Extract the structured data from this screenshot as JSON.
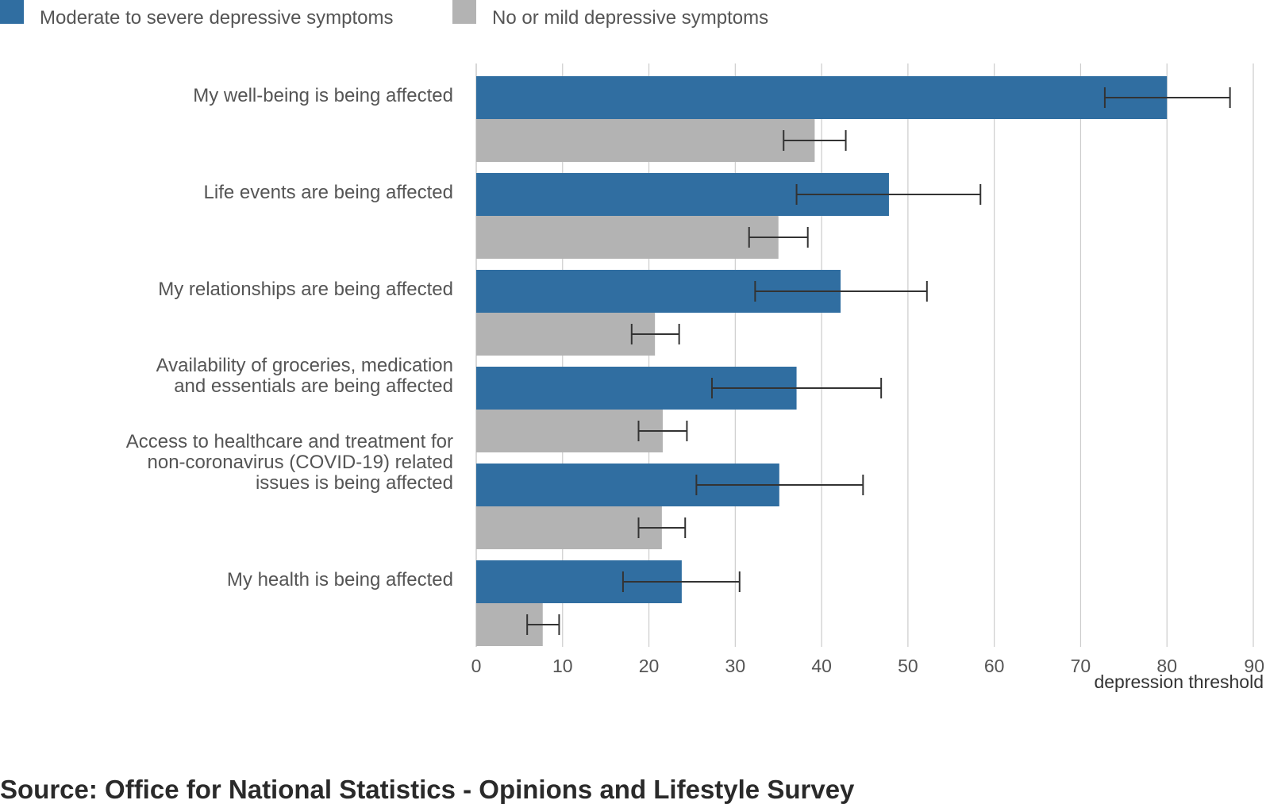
{
  "chart_data": {
    "type": "bar",
    "orientation": "horizontal",
    "categories": [
      [
        "My well-being is being affected"
      ],
      [
        "Life events are being affected"
      ],
      [
        "My relationships are being affected"
      ],
      [
        "Availability of groceries, medication",
        "and essentials are being affected"
      ],
      [
        "Access to healthcare and treatment for",
        "non-coronavirus (COVID-19) related",
        "issues is being affected"
      ],
      [
        "My health is being affected"
      ]
    ],
    "series": [
      {
        "name": "Moderate to severe depressive symptoms",
        "color": "#306ea1",
        "values": [
          80.0,
          47.8,
          42.2,
          37.1,
          35.1,
          23.8
        ],
        "error_low": [
          72.8,
          37.1,
          32.3,
          27.3,
          25.5,
          17.0
        ],
        "error_high": [
          87.3,
          58.4,
          52.2,
          46.9,
          44.8,
          30.5
        ]
      },
      {
        "name": "No or mild depressive symptoms",
        "color": "#b3b3b3",
        "values": [
          39.2,
          35.0,
          20.7,
          21.6,
          21.5,
          7.7
        ],
        "error_low": [
          35.6,
          31.6,
          18.0,
          18.8,
          18.8,
          5.9
        ],
        "error_high": [
          42.8,
          38.4,
          23.5,
          24.4,
          24.2,
          9.6
        ]
      }
    ],
    "xlim": [
      0,
      90
    ],
    "xticks": [
      0,
      10,
      20,
      30,
      40,
      50,
      60,
      70,
      80,
      90
    ],
    "xlabel": "depression threshold",
    "grid": "vertical",
    "legend_position": "top-left",
    "error_bars": true
  },
  "source": "Source: Office for National Statistics - Opinions and Lifestyle Survey",
  "colors": {
    "grid": "#cccccc",
    "error_bar": "#333333"
  }
}
